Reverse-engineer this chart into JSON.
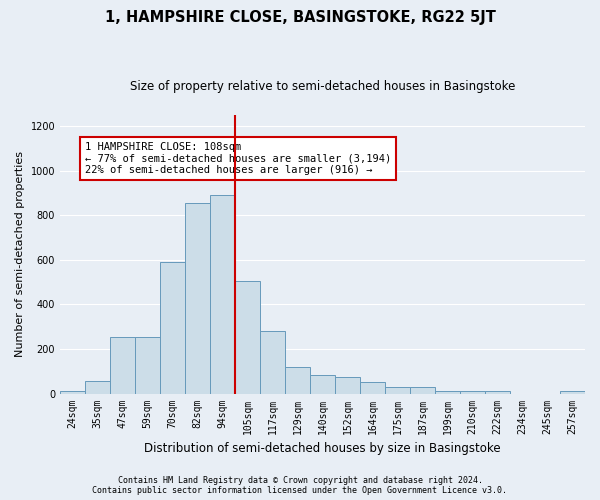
{
  "title": "1, HAMPSHIRE CLOSE, BASINGSTOKE, RG22 5JT",
  "subtitle": "Size of property relative to semi-detached houses in Basingstoke",
  "xlabel": "Distribution of semi-detached houses by size in Basingstoke",
  "ylabel": "Number of semi-detached properties",
  "footnote1": "Contains HM Land Registry data © Crown copyright and database right 2024.",
  "footnote2": "Contains public sector information licensed under the Open Government Licence v3.0.",
  "bar_labels": [
    "24sqm",
    "35sqm",
    "47sqm",
    "59sqm",
    "70sqm",
    "82sqm",
    "94sqm",
    "105sqm",
    "117sqm",
    "129sqm",
    "140sqm",
    "152sqm",
    "164sqm",
    "175sqm",
    "187sqm",
    "199sqm",
    "210sqm",
    "222sqm",
    "234sqm",
    "245sqm",
    "257sqm"
  ],
  "bar_values": [
    10,
    55,
    255,
    255,
    590,
    855,
    890,
    505,
    280,
    120,
    85,
    75,
    50,
    30,
    30,
    10,
    10,
    10,
    0,
    0,
    10
  ],
  "bar_color": "#ccdde8",
  "bar_edgecolor": "#6699bb",
  "property_label": "1 HAMPSHIRE CLOSE: 108sqm",
  "pct_smaller": 77,
  "n_smaller": 3194,
  "pct_larger": 22,
  "n_larger": 916,
  "vline_index": 7,
  "annotation_box_color": "#cc0000",
  "ylim": [
    0,
    1250
  ],
  "yticks": [
    0,
    200,
    400,
    600,
    800,
    1000,
    1200
  ],
  "background_color": "#e8eef5",
  "grid_color": "#ffffff",
  "title_fontsize": 10.5,
  "subtitle_fontsize": 8.5,
  "axis_label_fontsize": 8,
  "tick_fontsize": 7,
  "annotation_fontsize": 7.5,
  "footnote_fontsize": 6
}
